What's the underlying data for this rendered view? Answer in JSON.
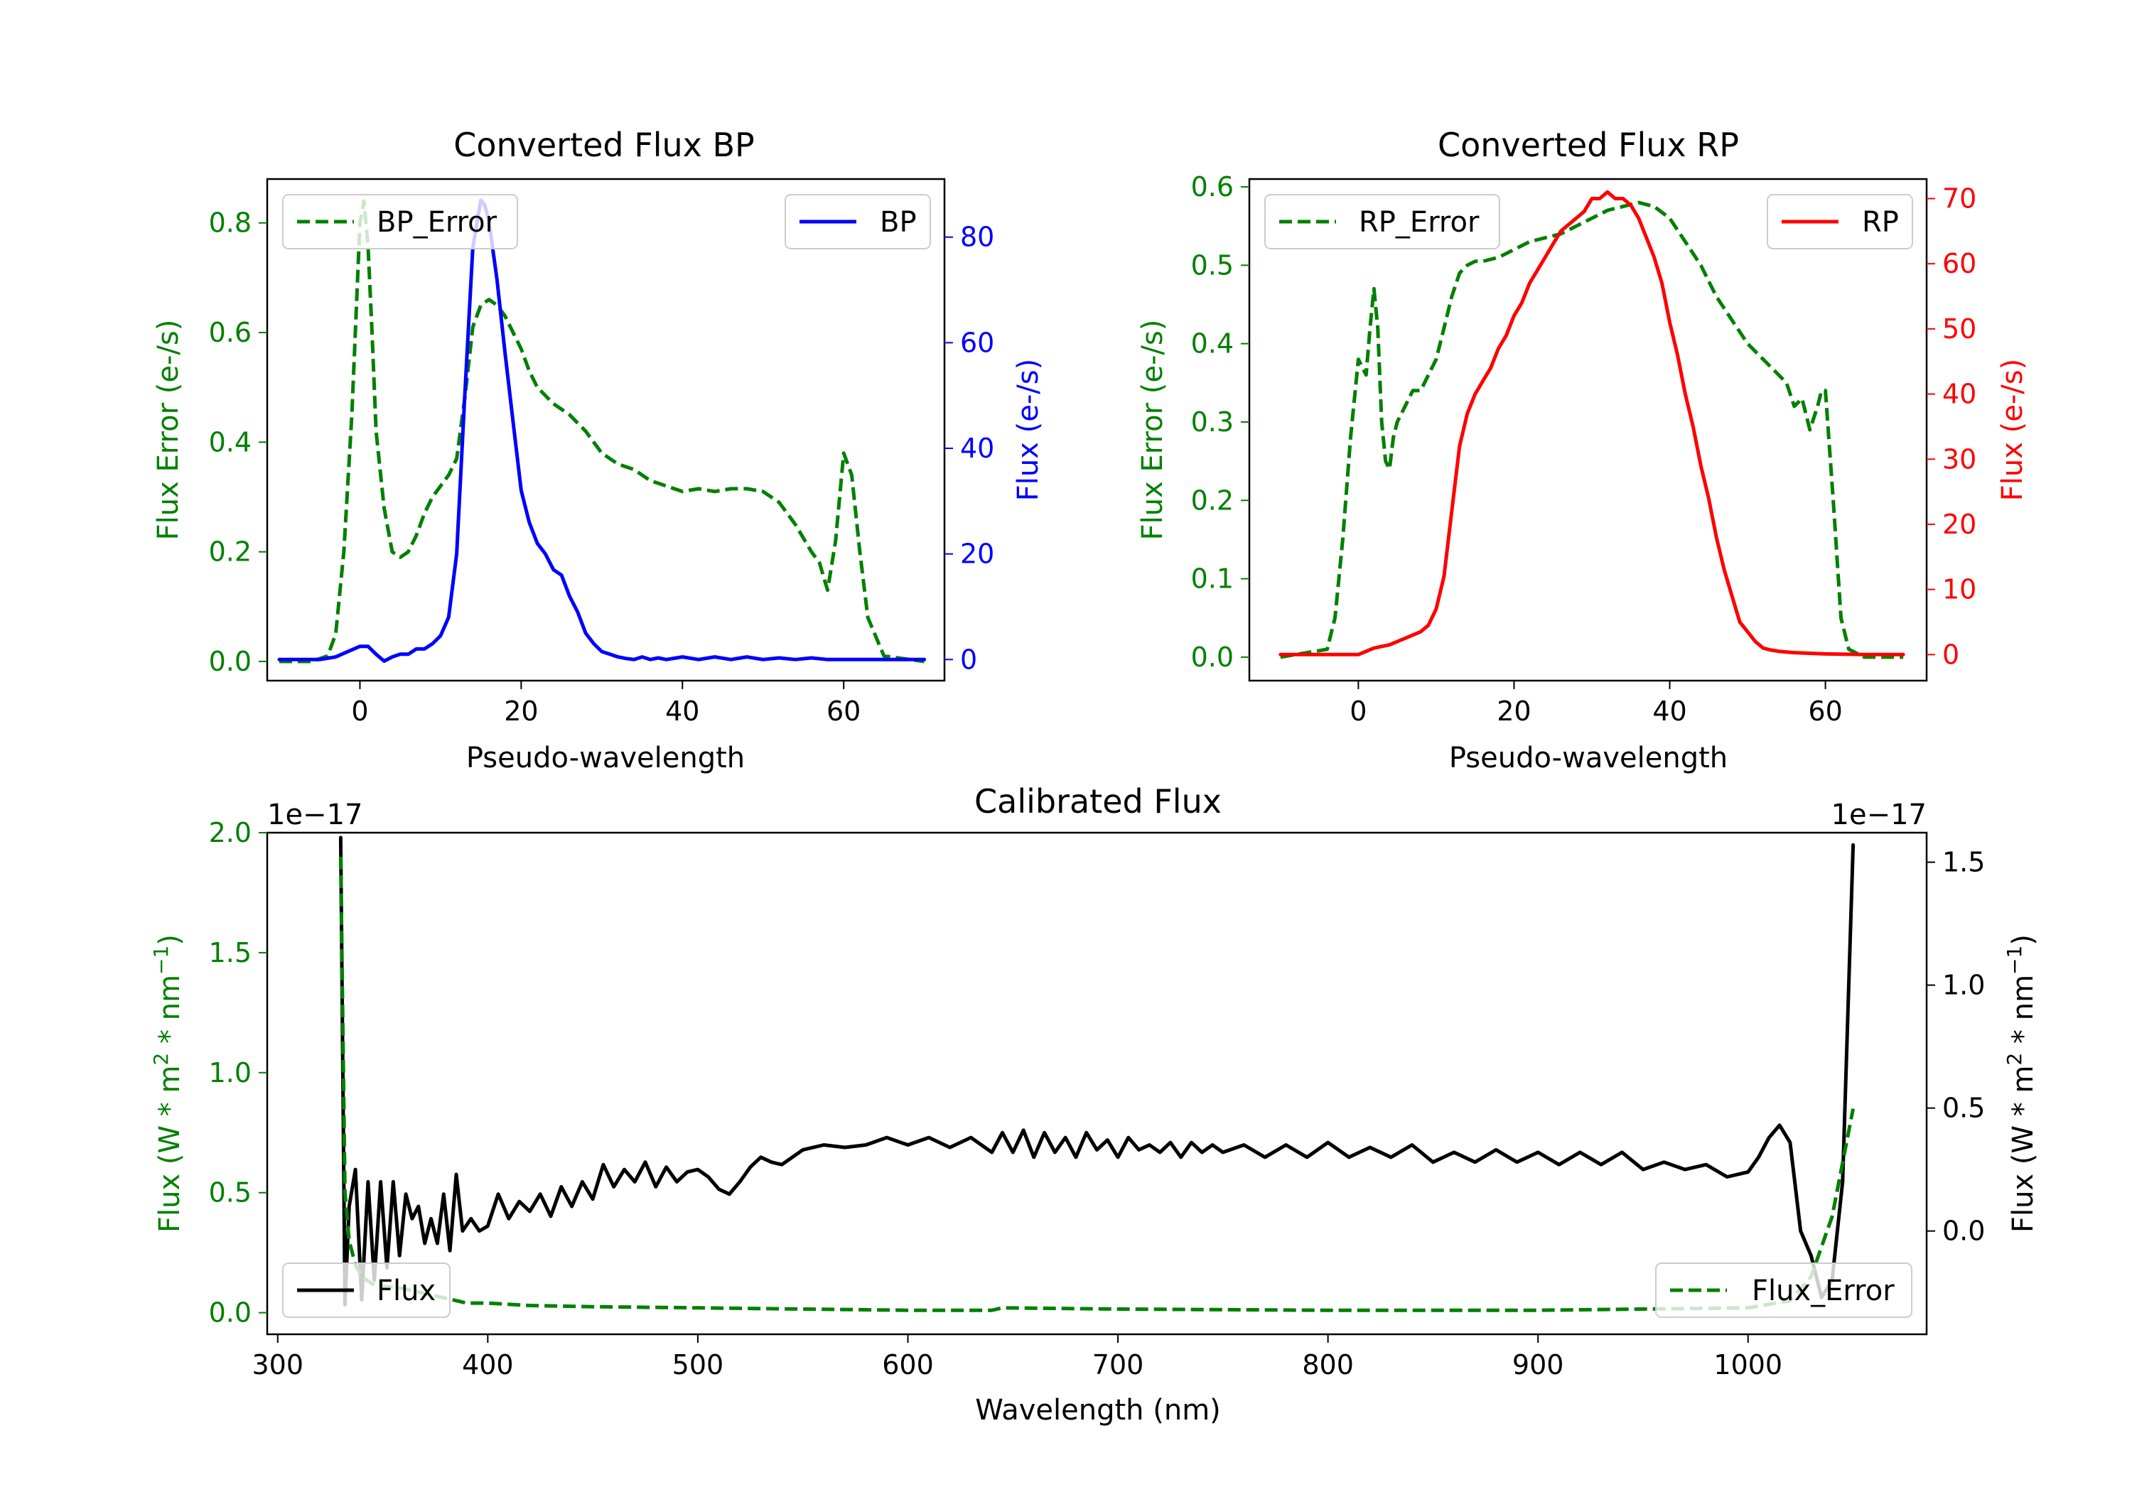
{
  "colors": {
    "green": "#008000",
    "blue": "#0000ff",
    "red": "#ff0000",
    "black": "#000000"
  },
  "chart_data": [
    {
      "id": "bp",
      "type": "line",
      "title": "Converted Flux BP",
      "xlabel": "Pseudo-wavelength",
      "ylabel_left": "Flux Error (e-/s)",
      "ylabel_right": "Flux (e-/s)",
      "xlim": [
        -11.5,
        72.5
      ],
      "ylim_left": [
        -0.035,
        0.88
      ],
      "ylim_right": [
        -4,
        91
      ],
      "xticks": [
        0,
        20,
        40,
        60
      ],
      "yticks_left": [
        "0.0",
        "0.2",
        "0.4",
        "0.6",
        "0.8"
      ],
      "yticks_right": [
        "0",
        "20",
        "40",
        "60",
        "80"
      ],
      "legend_left": "BP_Error",
      "legend_right": "BP",
      "series": [
        {
          "name": "BP_Error",
          "axis": "left",
          "style": "dashed",
          "color": "#008000",
          "x": [
            -10,
            -6,
            -4,
            -3,
            -2,
            -1,
            0,
            0.5,
            1,
            1.5,
            2,
            3,
            4,
            5,
            6,
            7,
            8,
            9,
            10,
            11,
            12,
            13,
            14,
            15,
            16,
            17,
            18,
            19,
            20,
            21,
            22,
            24,
            26,
            28,
            30,
            32,
            34,
            36,
            38,
            40,
            42,
            44,
            46,
            48,
            50,
            52,
            54,
            56,
            57,
            58,
            59,
            60,
            61,
            62,
            63,
            65,
            70
          ],
          "y": [
            0,
            0,
            0.01,
            0.05,
            0.2,
            0.45,
            0.8,
            0.84,
            0.76,
            0.6,
            0.42,
            0.28,
            0.2,
            0.19,
            0.2,
            0.23,
            0.27,
            0.3,
            0.32,
            0.34,
            0.37,
            0.48,
            0.61,
            0.65,
            0.66,
            0.65,
            0.63,
            0.6,
            0.57,
            0.53,
            0.5,
            0.47,
            0.45,
            0.42,
            0.38,
            0.36,
            0.35,
            0.33,
            0.32,
            0.31,
            0.315,
            0.31,
            0.315,
            0.315,
            0.31,
            0.29,
            0.25,
            0.2,
            0.18,
            0.13,
            0.22,
            0.38,
            0.34,
            0.2,
            0.08,
            0.01,
            0
          ]
        },
        {
          "name": "BP",
          "axis": "right",
          "style": "solid",
          "color": "#0000ff",
          "x": [
            -10,
            -5,
            -3,
            0,
            1,
            2,
            3,
            4,
            5,
            6,
            7,
            8,
            9,
            10,
            11,
            12,
            13,
            14,
            15,
            15.5,
            16,
            17,
            18,
            19,
            20,
            21,
            22,
            23,
            24,
            25,
            26,
            27,
            28,
            29,
            30,
            31,
            32,
            33,
            34,
            35,
            36,
            37,
            38,
            40,
            42,
            44,
            46,
            48,
            50,
            52,
            54,
            56,
            58,
            60,
            62,
            65,
            70
          ],
          "y": [
            0,
            0,
            0.5,
            2.5,
            2.5,
            1,
            -0.3,
            0.5,
            1,
            1,
            2,
            2,
            3,
            4.5,
            8,
            20,
            50,
            78,
            87,
            86,
            83,
            72,
            58,
            45,
            32,
            26,
            22,
            20,
            17,
            16,
            12,
            9,
            5,
            3,
            1.5,
            1,
            0.5,
            0.2,
            0,
            0.5,
            0,
            0.3,
            0,
            0.5,
            0,
            0.5,
            0,
            0.5,
            0,
            0.3,
            0,
            0.3,
            0,
            0,
            0,
            0,
            0
          ]
        }
      ]
    },
    {
      "id": "rp",
      "type": "line",
      "title": "Converted Flux RP",
      "xlabel": "Pseudo-wavelength",
      "ylabel_left": "Flux Error (e-/s)",
      "ylabel_right": "Flux (e-/s)",
      "xlim": [
        -14,
        73
      ],
      "ylim_left": [
        -0.03,
        0.61
      ],
      "ylim_right": [
        -4,
        73
      ],
      "xticks": [
        0,
        20,
        40,
        60
      ],
      "yticks_left": [
        "0.0",
        "0.1",
        "0.2",
        "0.3",
        "0.4",
        "0.5",
        "0.6"
      ],
      "yticks_right": [
        "0",
        "10",
        "20",
        "30",
        "40",
        "50",
        "60",
        "70"
      ],
      "legend_left": "RP_Error",
      "legend_right": "RP",
      "series": [
        {
          "name": "RP_Error",
          "axis": "left",
          "style": "dashed",
          "color": "#008000",
          "x": [
            -10,
            -4,
            -3,
            -2,
            -1,
            0,
            0.5,
            1,
            1.5,
            2,
            2.5,
            3,
            3.5,
            4,
            4.5,
            5,
            6,
            7,
            8,
            9,
            10,
            11,
            12,
            13,
            14,
            15,
            16,
            18,
            20,
            22,
            24,
            26,
            28,
            30,
            32,
            34,
            36,
            38,
            40,
            42,
            44,
            46,
            48,
            50,
            52,
            54,
            55,
            56,
            57,
            58,
            59,
            59.5,
            60,
            61,
            62,
            63,
            65,
            70
          ],
          "y": [
            0,
            0.01,
            0.05,
            0.15,
            0.28,
            0.38,
            0.37,
            0.36,
            0.42,
            0.47,
            0.42,
            0.3,
            0.25,
            0.24,
            0.28,
            0.3,
            0.32,
            0.34,
            0.34,
            0.36,
            0.38,
            0.42,
            0.46,
            0.49,
            0.5,
            0.505,
            0.505,
            0.51,
            0.52,
            0.53,
            0.535,
            0.54,
            0.55,
            0.56,
            0.57,
            0.575,
            0.58,
            0.575,
            0.56,
            0.53,
            0.5,
            0.46,
            0.43,
            0.4,
            0.38,
            0.36,
            0.35,
            0.32,
            0.33,
            0.29,
            0.32,
            0.34,
            0.34,
            0.2,
            0.05,
            0.01,
            0,
            0
          ]
        },
        {
          "name": "RP",
          "axis": "right",
          "style": "solid",
          "color": "#ff0000",
          "x": [
            -10,
            -5,
            0,
            2,
            4,
            6,
            8,
            9,
            10,
            11,
            12,
            13,
            14,
            15,
            16,
            17,
            18,
            19,
            20,
            21,
            22,
            23,
            24,
            25,
            26,
            27,
            28,
            29,
            30,
            31,
            32,
            33,
            34,
            35,
            36,
            37,
            38,
            39,
            40,
            41,
            42,
            43,
            44,
            45,
            46,
            47,
            48,
            49,
            50,
            51,
            52,
            53,
            54,
            55,
            56,
            58,
            60,
            65,
            70
          ],
          "y": [
            0,
            0,
            0,
            1,
            1.5,
            2.5,
            3.5,
            4.5,
            7,
            12,
            22,
            32,
            37,
            40,
            42,
            44,
            47,
            49,
            52,
            54,
            57,
            59,
            61,
            63,
            65,
            66,
            67,
            68,
            70,
            70,
            71,
            70,
            70,
            69,
            67,
            64,
            61,
            57,
            51,
            46,
            40,
            35,
            29,
            24,
            18,
            13,
            9,
            5,
            3.5,
            2,
            1,
            0.7,
            0.5,
            0.4,
            0.3,
            0.2,
            0.1,
            0,
            0
          ]
        }
      ]
    },
    {
      "id": "calibrated",
      "type": "line",
      "title": "Calibrated Flux",
      "xlabel": "Wavelength (nm)",
      "ylabel_left": "Flux (W * m^2 * nm^-1)",
      "ylabel_right": "Flux (W * m^2 * nm^-1)",
      "xlim": [
        295,
        1085
      ],
      "ylim_left": [
        -0.09,
        2.0
      ],
      "ylim_right": [
        -0.42,
        1.62
      ],
      "offset_left": "1e−17",
      "offset_right": "1e−17",
      "xticks": [
        300,
        400,
        500,
        600,
        700,
        800,
        900,
        1000
      ],
      "yticks_left": [
        "0.0",
        "0.5",
        "1.0",
        "1.5",
        "2.0"
      ],
      "yticks_right": [
        "0.0",
        "0.5",
        "1.0",
        "1.5"
      ],
      "yticks_left_values": [
        0,
        0.5,
        1.0,
        1.5,
        2.0
      ],
      "yticks_right_values": [
        0,
        0.5,
        1.0,
        1.5
      ],
      "legend_left": "Flux",
      "legend_right": "Flux_Error",
      "series": [
        {
          "name": "Flux",
          "axis": "right",
          "style": "solid",
          "color": "#000000",
          "x": [
            330,
            332,
            334,
            337,
            340,
            343,
            346,
            349,
            352,
            355,
            358,
            361,
            364,
            367,
            370,
            373,
            376,
            379,
            382,
            385,
            388,
            392,
            396,
            400,
            405,
            410,
            415,
            420,
            425,
            430,
            435,
            440,
            445,
            450,
            455,
            460,
            465,
            470,
            475,
            480,
            485,
            490,
            495,
            500,
            505,
            510,
            515,
            520,
            525,
            530,
            535,
            540,
            545,
            550,
            560,
            570,
            580,
            590,
            600,
            610,
            620,
            630,
            640,
            645,
            650,
            655,
            660,
            665,
            670,
            675,
            680,
            685,
            690,
            695,
            700,
            705,
            710,
            715,
            720,
            725,
            730,
            735,
            740,
            745,
            750,
            760,
            770,
            780,
            790,
            800,
            810,
            820,
            830,
            840,
            850,
            860,
            870,
            880,
            890,
            900,
            910,
            920,
            930,
            940,
            950,
            960,
            970,
            980,
            990,
            1000,
            1005,
            1010,
            1015,
            1020,
            1025,
            1030,
            1035,
            1040,
            1045,
            1050
          ],
          "y": [
            1.6,
            -0.3,
            0.1,
            0.25,
            -0.28,
            0.2,
            -0.2,
            0.2,
            -0.15,
            0.2,
            -0.1,
            0.15,
            0.05,
            0.1,
            -0.05,
            0.05,
            -0.05,
            0.15,
            -0.08,
            0.23,
            0.0,
            0.05,
            0.0,
            0.02,
            0.15,
            0.05,
            0.12,
            0.08,
            0.15,
            0.06,
            0.18,
            0.1,
            0.2,
            0.13,
            0.27,
            0.18,
            0.25,
            0.2,
            0.28,
            0.18,
            0.26,
            0.2,
            0.24,
            0.25,
            0.22,
            0.17,
            0.15,
            0.2,
            0.26,
            0.3,
            0.28,
            0.27,
            0.3,
            0.33,
            0.35,
            0.34,
            0.35,
            0.38,
            0.35,
            0.38,
            0.34,
            0.38,
            0.32,
            0.4,
            0.32,
            0.41,
            0.3,
            0.4,
            0.32,
            0.38,
            0.3,
            0.4,
            0.33,
            0.37,
            0.3,
            0.38,
            0.33,
            0.35,
            0.32,
            0.36,
            0.3,
            0.36,
            0.32,
            0.35,
            0.32,
            0.35,
            0.3,
            0.35,
            0.3,
            0.36,
            0.3,
            0.34,
            0.3,
            0.35,
            0.28,
            0.32,
            0.28,
            0.33,
            0.28,
            0.32,
            0.27,
            0.32,
            0.27,
            0.32,
            0.25,
            0.28,
            0.25,
            0.27,
            0.22,
            0.24,
            0.3,
            0.38,
            0.43,
            0.36,
            0.0,
            -0.1,
            -0.27,
            -0.2,
            0.2,
            1.57
          ]
        },
        {
          "name": "Flux_Error",
          "axis": "left",
          "style": "dashed",
          "color": "#008000",
          "x": [
            330,
            332,
            334,
            337,
            340,
            345,
            350,
            360,
            370,
            380,
            390,
            400,
            420,
            450,
            500,
            550,
            600,
            640,
            645,
            700,
            800,
            900,
            950,
            1000,
            1020,
            1030,
            1040,
            1050
          ],
          "y": [
            1.9,
            0.5,
            0.3,
            0.2,
            0.15,
            0.12,
            0.11,
            0.1,
            0.08,
            0.06,
            0.04,
            0.04,
            0.03,
            0.025,
            0.02,
            0.015,
            0.01,
            0.01,
            0.02,
            0.015,
            0.01,
            0.01,
            0.015,
            0.02,
            0.05,
            0.15,
            0.4,
            0.85
          ]
        }
      ]
    }
  ]
}
